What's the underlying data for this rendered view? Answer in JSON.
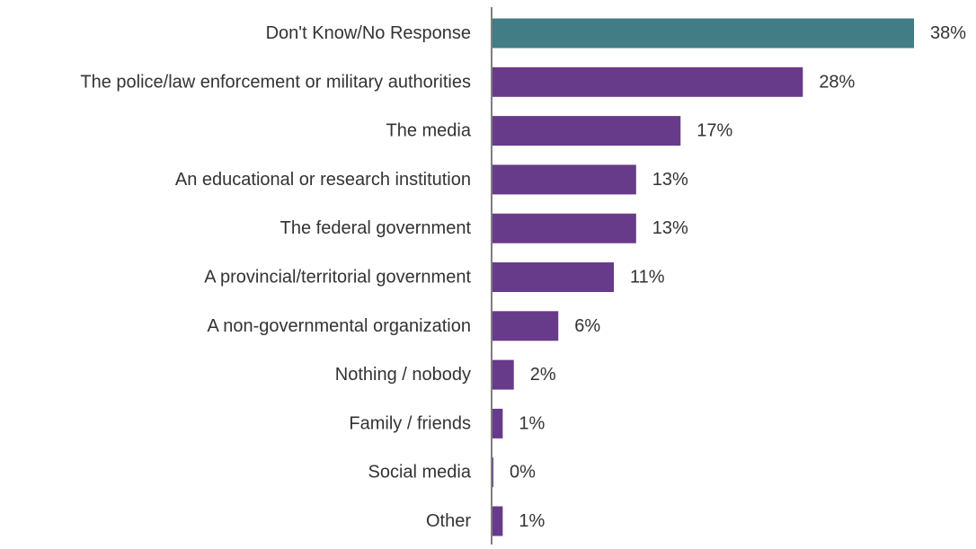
{
  "chart_data": {
    "type": "bar",
    "orientation": "horizontal",
    "categories": [
      "Don't Know/No Response",
      "The police/law enforcement or military authorities",
      "The media",
      "An educational or research institution",
      "The federal government",
      "A provincial/territorial government",
      "A non-governmental organization",
      "Nothing / nobody",
      "Family / friends",
      "Social media",
      "Other"
    ],
    "values": [
      38,
      28,
      17,
      13,
      13,
      11,
      6,
      2,
      1,
      0,
      1
    ],
    "value_labels": [
      "38%",
      "28%",
      "17%",
      "13%",
      "13%",
      "11%",
      "6%",
      "2%",
      "1%",
      "0%",
      "1%"
    ],
    "unit": "%",
    "xlim": [
      0,
      38
    ],
    "grid": false,
    "legend": "none",
    "colors": {
      "highlight": "#427C84",
      "default": "#673A8A",
      "axis": "#7F7F7F"
    },
    "highlight_index": 0
  }
}
